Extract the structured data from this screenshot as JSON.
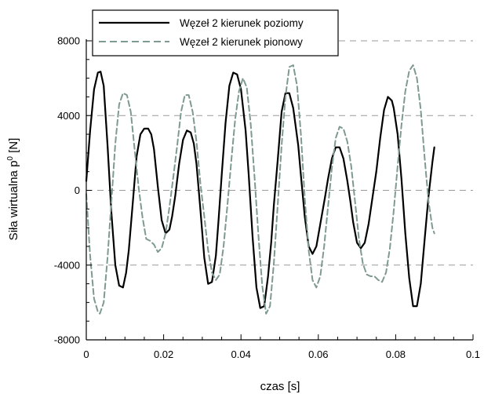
{
  "chart_data": {
    "type": "line",
    "xlabel": "czas [s]",
    "ylabel_main": "Siła wirtualna p",
    "ylabel_sup": "0",
    "ylabel_unit": " [N]",
    "xlim": [
      0,
      0.1
    ],
    "ylim": [
      -8000,
      8000
    ],
    "x_ticks": [
      0,
      0.02,
      0.04,
      0.06,
      0.08,
      0.1
    ],
    "x_tick_labels": [
      "0",
      "0.02",
      "0.04",
      "0.06",
      "0.08",
      "0.1"
    ],
    "y_ticks": [
      -8000,
      -4000,
      0,
      4000,
      8000
    ],
    "y_tick_labels": [
      "-8000",
      "-4000",
      "0",
      "4000",
      "8000"
    ],
    "y_minor_step": 1000,
    "x_minor_step": 0.005,
    "grid": "horizontal-dashed",
    "legend_position": "top-left",
    "series": [
      {
        "name": "Węzeł 2 kierunek poziomy",
        "color": "#000000",
        "style": "solid",
        "x": [
          0,
          0.001,
          0.002,
          0.003,
          0.0037,
          0.0045,
          0.0055,
          0.0065,
          0.0075,
          0.0085,
          0.0095,
          0.0103,
          0.011,
          0.012,
          0.013,
          0.014,
          0.015,
          0.016,
          0.0168,
          0.0175,
          0.0185,
          0.0195,
          0.0205,
          0.0215,
          0.0222,
          0.023,
          0.024,
          0.025,
          0.026,
          0.027,
          0.0278,
          0.0285,
          0.0295,
          0.0305,
          0.0315,
          0.0325,
          0.0335,
          0.0342,
          0.035,
          0.036,
          0.037,
          0.038,
          0.039,
          0.04,
          0.0412,
          0.042,
          0.043,
          0.044,
          0.045,
          0.046,
          0.047,
          0.0478,
          0.0485,
          0.0495,
          0.0505,
          0.0515,
          0.0525,
          0.0535,
          0.0548,
          0.0555,
          0.0565,
          0.0575,
          0.0585,
          0.0595,
          0.0605,
          0.0617,
          0.0625,
          0.0635,
          0.0645,
          0.0655,
          0.0665,
          0.0675,
          0.0683,
          0.069,
          0.07,
          0.071,
          0.072,
          0.073,
          0.074,
          0.075,
          0.076,
          0.077,
          0.078,
          0.079,
          0.0795,
          0.0805,
          0.0815,
          0.0825,
          0.0835,
          0.0845,
          0.0855,
          0.0865,
          0.0875,
          0.0885,
          0.0895,
          0.09
        ],
        "y": [
          500,
          3200,
          5400,
          6300,
          6350,
          5600,
          2400,
          -1200,
          -4000,
          -5100,
          -5200,
          -4400,
          -3200,
          -700,
          1800,
          3000,
          3300,
          3300,
          3000,
          2200,
          200,
          -1600,
          -2300,
          -2100,
          -1400,
          -300,
          1400,
          2700,
          3200,
          3100,
          2500,
          1400,
          -1000,
          -3600,
          -5000,
          -4900,
          -3500,
          -1600,
          800,
          3600,
          5600,
          6300,
          6200,
          5400,
          3200,
          800,
          -2500,
          -5200,
          -6300,
          -6200,
          -4600,
          -2800,
          -800,
          1600,
          4200,
          5200,
          5200,
          4400,
          2400,
          800,
          -1400,
          -3000,
          -3400,
          -3000,
          -1800,
          -400,
          600,
          1700,
          2300,
          2300,
          1700,
          500,
          -600,
          -1700,
          -2800,
          -3100,
          -2800,
          -1800,
          -400,
          1000,
          2800,
          4300,
          5000,
          4800,
          4400,
          3000,
          600,
          -2300,
          -4700,
          -6200,
          -6200,
          -5000,
          -2600,
          -300,
          1500,
          2300
        ]
      },
      {
        "name": "Węzeł 2 kierunek pionowy",
        "color": "#7f9a92",
        "style": "dashed",
        "x": [
          0,
          0.001,
          0.002,
          0.003,
          0.0035,
          0.0045,
          0.0055,
          0.0065,
          0.0075,
          0.0085,
          0.0095,
          0.0105,
          0.0115,
          0.0125,
          0.0135,
          0.0145,
          0.0155,
          0.0165,
          0.0175,
          0.0185,
          0.0195,
          0.0205,
          0.0215,
          0.0225,
          0.0235,
          0.0245,
          0.0255,
          0.0265,
          0.0275,
          0.0285,
          0.0295,
          0.0305,
          0.0315,
          0.0325,
          0.0335,
          0.0345,
          0.0355,
          0.0365,
          0.0375,
          0.0385,
          0.0395,
          0.0405,
          0.0415,
          0.0425,
          0.0435,
          0.0445,
          0.0455,
          0.0465,
          0.0475,
          0.0485,
          0.0495,
          0.0505,
          0.0515,
          0.0525,
          0.0535,
          0.0545,
          0.0555,
          0.0565,
          0.0575,
          0.0585,
          0.0595,
          0.0605,
          0.0615,
          0.0625,
          0.0635,
          0.0645,
          0.0655,
          0.0665,
          0.0675,
          0.0685,
          0.0695,
          0.0705,
          0.0715,
          0.0725,
          0.0735,
          0.0745,
          0.0755,
          0.0765,
          0.0775,
          0.0785,
          0.0795,
          0.0805,
          0.0815,
          0.0825,
          0.0835,
          0.0845,
          0.0855,
          0.0865,
          0.0875,
          0.0885,
          0.0895,
          0.09
        ],
        "y": [
          -200,
          -3500,
          -5800,
          -6500,
          -6600,
          -6000,
          -3600,
          -600,
          2500,
          4600,
          5200,
          5100,
          4200,
          2200,
          200,
          -1400,
          -2600,
          -2700,
          -2900,
          -3300,
          -3100,
          -2300,
          -900,
          700,
          2400,
          4200,
          5100,
          5100,
          4200,
          2600,
          400,
          -1400,
          -3200,
          -4400,
          -4800,
          -4500,
          -3000,
          -800,
          1600,
          3800,
          5300,
          6000,
          5500,
          3600,
          700,
          -2400,
          -5100,
          -6600,
          -6200,
          -3900,
          -800,
          2400,
          5000,
          6600,
          6700,
          5600,
          3000,
          -400,
          -3200,
          -4800,
          -5200,
          -4600,
          -3000,
          -900,
          1200,
          2800,
          3400,
          3300,
          2600,
          1300,
          -600,
          -2600,
          -3900,
          -4500,
          -4600,
          -4600,
          -4800,
          -4900,
          -4400,
          -3100,
          -1100,
          1300,
          3500,
          5300,
          6400,
          6700,
          6000,
          4300,
          1700,
          -600,
          -2000,
          -2300
        ]
      }
    ]
  }
}
